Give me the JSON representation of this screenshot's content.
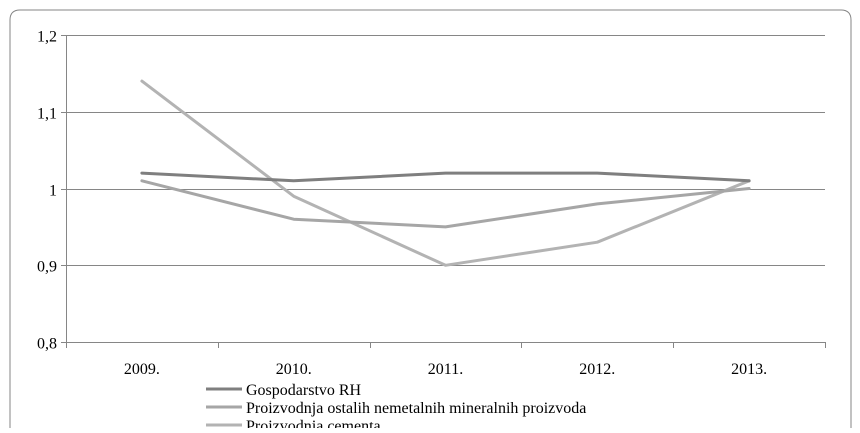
{
  "chart_data": {
    "type": "line",
    "title": "",
    "xlabel": "",
    "ylabel": "",
    "categories": [
      "2009.",
      "2010.",
      "2011.",
      "2012.",
      "2013."
    ],
    "ylim": [
      0.8,
      1.2
    ],
    "yticks": [
      0.8,
      0.9,
      1,
      1.1,
      1.2
    ],
    "ytick_labels": [
      "0,8",
      "0,9",
      "1",
      "1,1",
      "1,2"
    ],
    "grid": true,
    "legend_position": "bottom",
    "series": [
      {
        "name": "Gospodarstvo RH",
        "color": "#7f7f7f",
        "values": [
          1.02,
          1.01,
          1.02,
          1.02,
          1.01
        ]
      },
      {
        "name": "Proizvodnja ostalih nemetalnih mineralnih proizvoda",
        "color": "#a6a6a6",
        "values": [
          1.01,
          0.96,
          0.95,
          0.98,
          1.0
        ]
      },
      {
        "name": "Proizvodnja cementa",
        "color": "#b3b3b3",
        "values": [
          1.14,
          0.99,
          0.9,
          0.93,
          1.01
        ]
      }
    ]
  }
}
